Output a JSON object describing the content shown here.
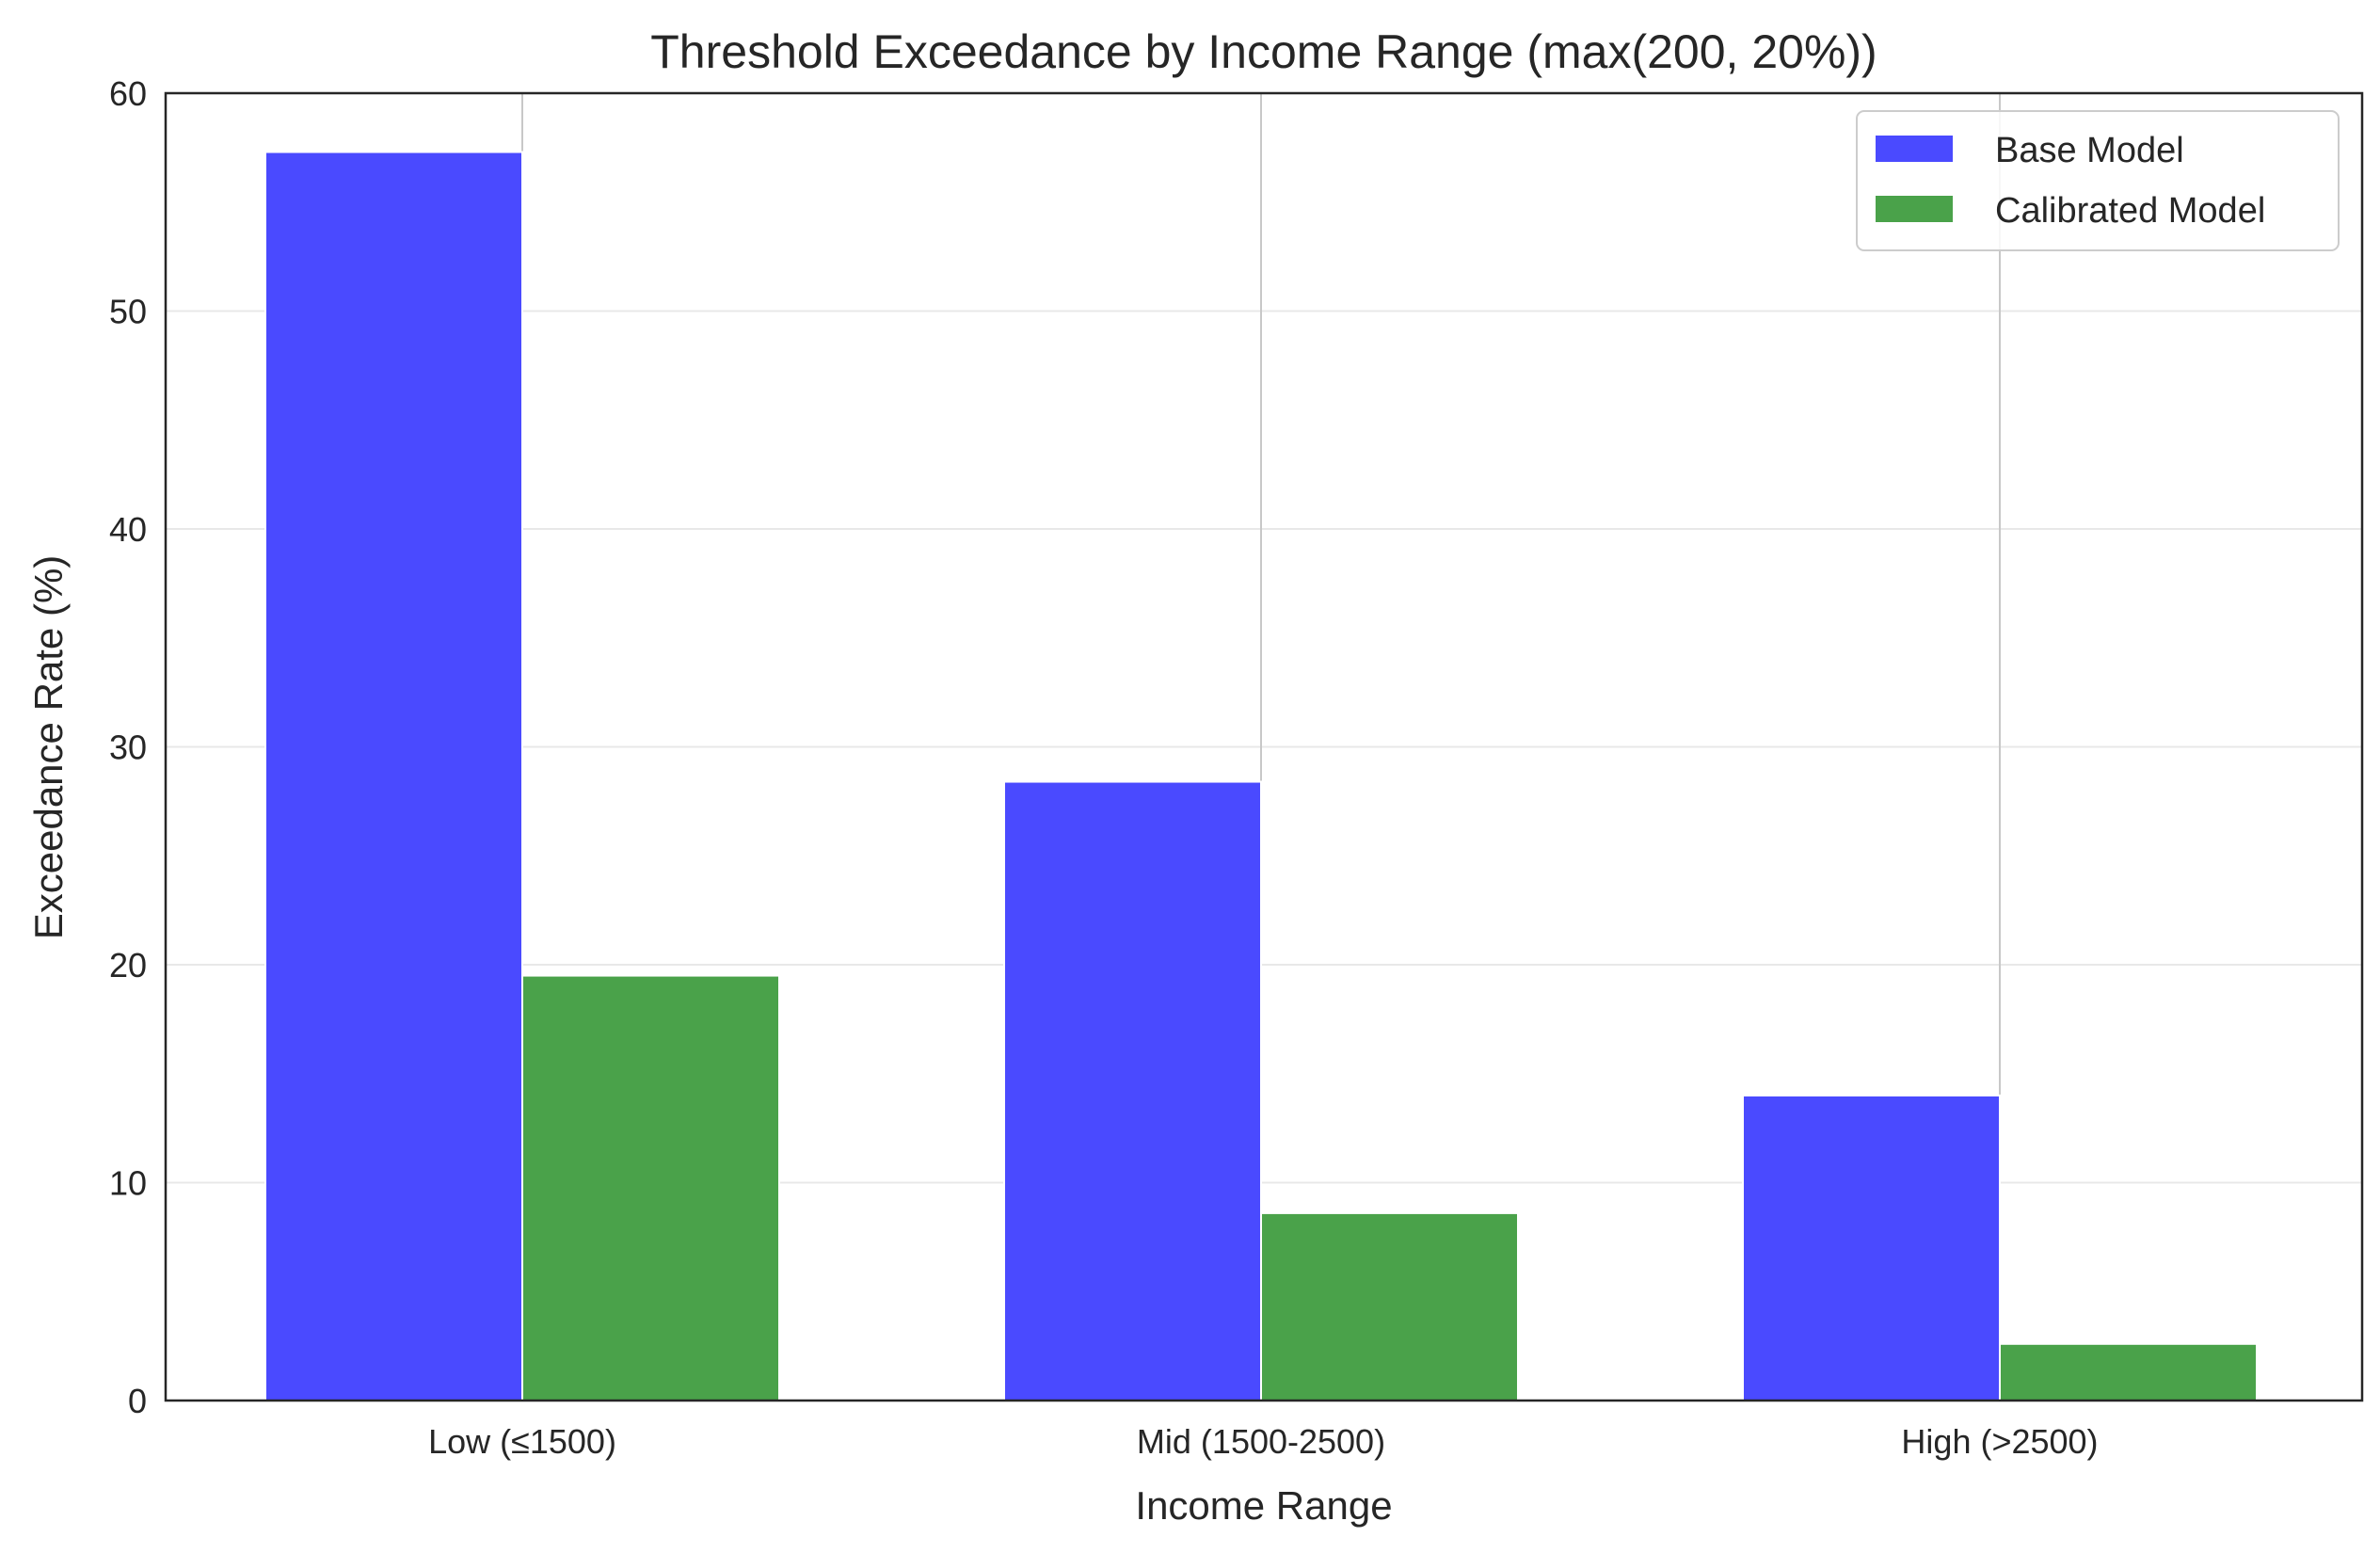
{
  "chart_data": {
    "type": "bar",
    "title": "Threshold Exceedance by Income Range (max(200, 20%))",
    "xlabel": "Income Range",
    "ylabel": "Exceedance Rate (%)",
    "categories": [
      "Low (≤1500)",
      "Mid (1500-2500)",
      "High (>2500)"
    ],
    "series": [
      {
        "name": "Base Model",
        "color": "#4a4aff",
        "values": [
          57.3,
          28.4,
          14.0
        ]
      },
      {
        "name": "Calibrated Model",
        "color": "#4aa24a",
        "values": [
          19.5,
          8.6,
          2.6
        ]
      }
    ],
    "ylim": [
      0,
      60
    ],
    "yticks": [
      0,
      10,
      20,
      30,
      40,
      50,
      60
    ],
    "grid": "horizontal light, vertical at category centers",
    "legend_position": "top-right"
  }
}
